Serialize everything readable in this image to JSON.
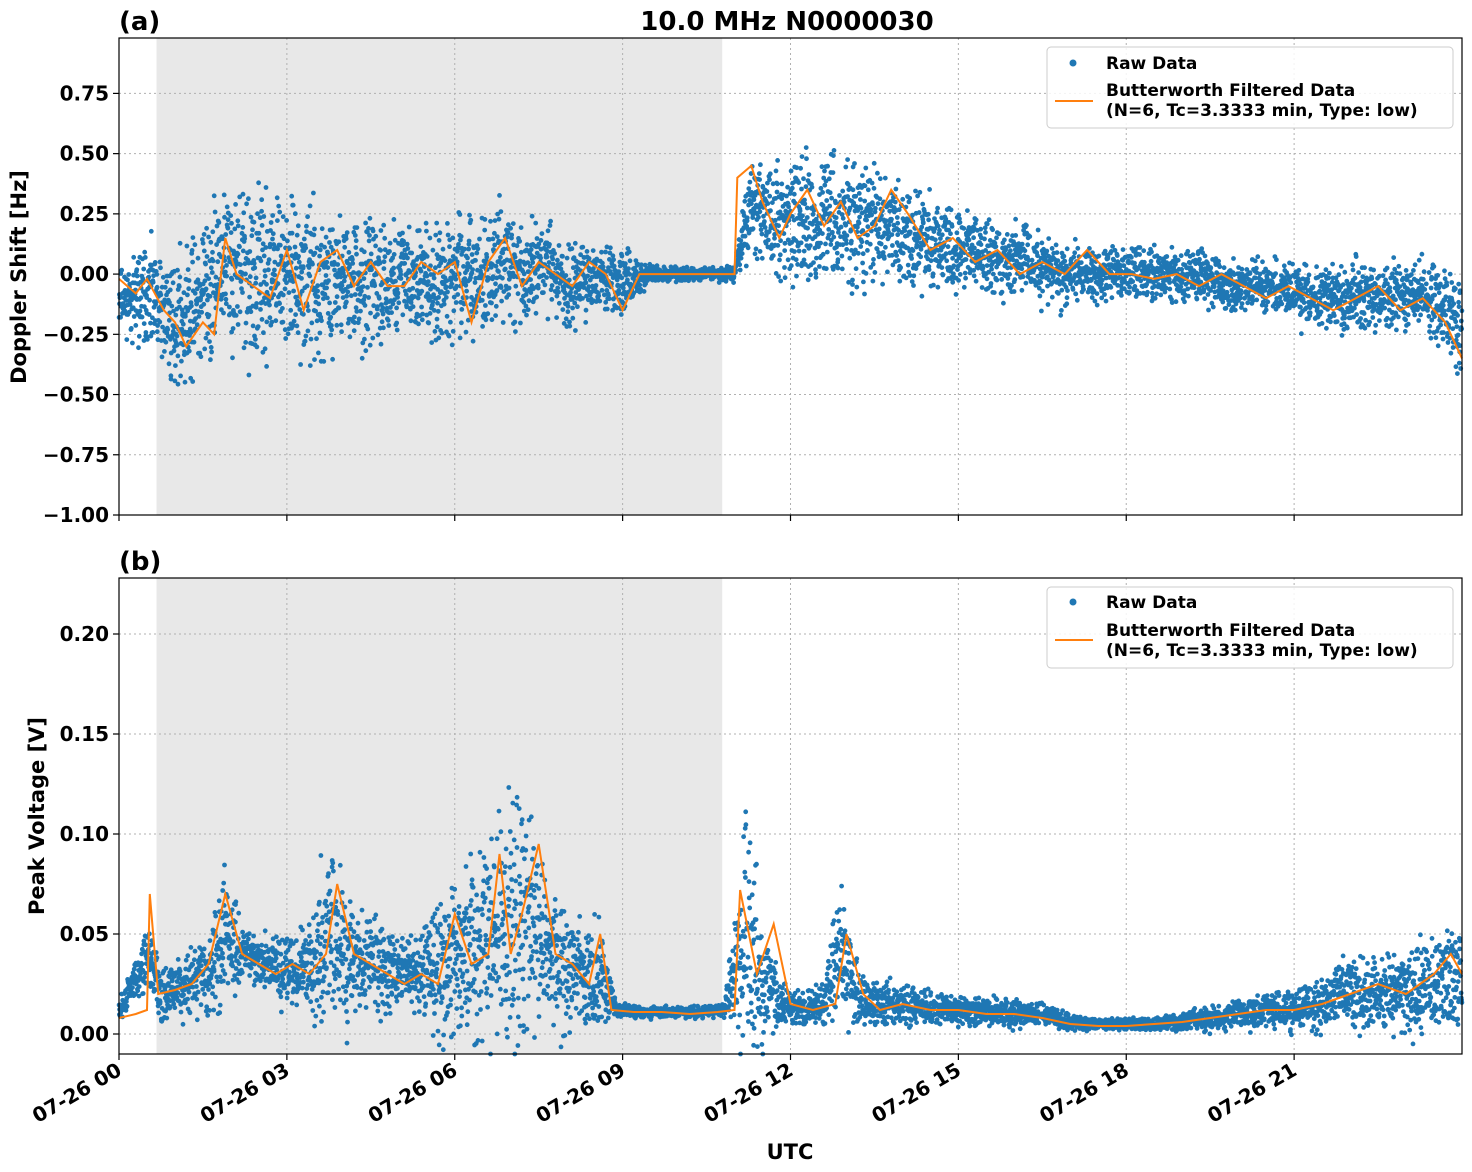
{
  "figure": {
    "title": "10.0 MHz N0000030",
    "xlabel": "UTC"
  },
  "colors": {
    "raw": "#1f77b4",
    "filtered": "#ff7f0e",
    "shade": "#e8e8e8",
    "grid": "#b0b0b0"
  },
  "legend": {
    "raw_label": "Raw Data",
    "filtered_line1": "Butterworth Filtered Data",
    "filtered_line2": "(N=6, Tc=3.3333 min, Type: low)",
    "placement": "top-right"
  },
  "chart_data": [
    {
      "panel_label": "(a)",
      "type": "scatter",
      "ylabel": "Doppler Shift [Hz]",
      "xlim_hours": [
        0,
        24
      ],
      "ylim": [
        -1.0,
        0.98
      ],
      "x_ticks": [
        0,
        3,
        6,
        9,
        12,
        15,
        18,
        21
      ],
      "x_tick_labels": [
        "07-26 00",
        "07-26 03",
        "07-26 06",
        "07-26 09",
        "07-26 12",
        "07-26 15",
        "07-26 18",
        "07-26 21"
      ],
      "y_ticks": [
        -1.0,
        -0.75,
        -0.5,
        -0.25,
        0.0,
        0.25,
        0.5,
        0.75
      ],
      "y_tick_labels": [
        "−1.00",
        "−0.75",
        "−0.50",
        "−0.25",
        "0.00",
        "0.25",
        "0.50",
        "0.75"
      ],
      "shaded_span_hours": [
        0.67,
        10.78
      ],
      "grid": true,
      "series": [
        {
          "name": "Raw Data",
          "kind": "scatter",
          "x_hours": [
            0.0,
            0.5,
            1.0,
            1.5,
            1.9,
            2.5,
            3.0,
            3.5,
            4.0,
            4.5,
            5.0,
            5.5,
            6.0,
            6.4,
            6.8,
            7.2,
            7.6,
            8.0,
            8.5,
            9.0,
            9.5,
            10.0,
            10.5,
            11.0,
            11.3,
            11.8,
            12.3,
            12.7,
            13.2,
            13.7,
            14.2,
            14.8,
            15.3,
            15.8,
            16.3,
            16.8,
            17.3,
            17.8,
            18.3,
            18.8,
            19.3,
            19.8,
            20.3,
            20.8,
            21.3,
            21.8,
            22.3,
            22.8,
            23.3,
            23.7,
            24.0
          ],
          "y_center": [
            -0.1,
            -0.1,
            -0.2,
            -0.1,
            0.05,
            -0.05,
            0.0,
            -0.05,
            0.0,
            -0.05,
            0.0,
            -0.05,
            0.0,
            -0.05,
            0.05,
            0.0,
            0.05,
            -0.05,
            0.0,
            -0.05,
            0.0,
            0.0,
            0.0,
            0.0,
            0.3,
            0.2,
            0.25,
            0.2,
            0.2,
            0.2,
            0.15,
            0.1,
            0.1,
            0.05,
            0.05,
            0.0,
            0.0,
            0.0,
            0.0,
            0.0,
            0.0,
            -0.05,
            -0.05,
            -0.05,
            -0.1,
            -0.1,
            -0.1,
            -0.1,
            -0.1,
            -0.15,
            -0.2
          ],
          "y_spread": [
            0.15,
            0.3,
            0.35,
            0.45,
            0.5,
            0.5,
            0.4,
            0.45,
            0.35,
            0.35,
            0.3,
            0.35,
            0.35,
            0.35,
            0.35,
            0.3,
            0.25,
            0.25,
            0.2,
            0.2,
            0.05,
            0.04,
            0.04,
            0.04,
            0.3,
            0.3,
            0.4,
            0.4,
            0.35,
            0.3,
            0.3,
            0.25,
            0.2,
            0.2,
            0.2,
            0.2,
            0.15,
            0.15,
            0.15,
            0.15,
            0.15,
            0.15,
            0.15,
            0.15,
            0.2,
            0.2,
            0.2,
            0.2,
            0.2,
            0.25,
            0.3
          ]
        },
        {
          "name": "Butterworth Filtered Data (N=6, Tc=3.3333 min, Type: low)",
          "kind": "line",
          "x_hours": [
            0.0,
            0.3,
            0.5,
            0.8,
            1.0,
            1.2,
            1.5,
            1.7,
            1.9,
            2.1,
            2.4,
            2.7,
            3.0,
            3.3,
            3.6,
            3.9,
            4.2,
            4.5,
            4.8,
            5.1,
            5.4,
            5.7,
            6.0,
            6.3,
            6.6,
            6.9,
            7.2,
            7.5,
            7.8,
            8.1,
            8.4,
            8.7,
            9.0,
            9.3,
            9.6,
            10.0,
            10.5,
            11.0,
            11.05,
            11.3,
            11.5,
            11.8,
            12.0,
            12.3,
            12.6,
            12.9,
            13.2,
            13.5,
            13.8,
            14.1,
            14.5,
            14.9,
            15.3,
            15.7,
            16.1,
            16.5,
            16.9,
            17.3,
            17.7,
            18.1,
            18.5,
            18.9,
            19.3,
            19.7,
            20.1,
            20.5,
            20.9,
            21.3,
            21.7,
            22.1,
            22.5,
            22.9,
            23.3,
            23.7,
            24.0
          ],
          "y": [
            -0.02,
            -0.08,
            -0.02,
            -0.15,
            -0.2,
            -0.3,
            -0.2,
            -0.25,
            0.15,
            0.0,
            -0.05,
            -0.1,
            0.1,
            -0.15,
            0.05,
            0.1,
            -0.05,
            0.05,
            -0.05,
            -0.05,
            0.05,
            0.0,
            0.05,
            -0.2,
            0.05,
            0.15,
            -0.05,
            0.05,
            0.0,
            -0.05,
            0.05,
            0.0,
            -0.15,
            0.0,
            0.0,
            0.0,
            0.0,
            0.0,
            0.4,
            0.45,
            0.3,
            0.15,
            0.25,
            0.35,
            0.2,
            0.3,
            0.15,
            0.2,
            0.35,
            0.25,
            0.1,
            0.15,
            0.05,
            0.1,
            0.0,
            0.05,
            0.0,
            0.1,
            0.0,
            0.0,
            -0.02,
            0.0,
            -0.05,
            0.0,
            -0.05,
            -0.1,
            -0.05,
            -0.1,
            -0.15,
            -0.1,
            -0.05,
            -0.15,
            -0.1,
            -0.2,
            -0.35
          ]
        }
      ]
    },
    {
      "panel_label": "(b)",
      "type": "scatter",
      "ylabel": "Peak Voltage [V]",
      "xlim_hours": [
        0,
        24
      ],
      "ylim": [
        -0.01,
        0.228
      ],
      "x_ticks": [
        0,
        3,
        6,
        9,
        12,
        15,
        18,
        21
      ],
      "x_tick_labels": [
        "07-26 00",
        "07-26 03",
        "07-26 06",
        "07-26 09",
        "07-26 12",
        "07-26 15",
        "07-26 18",
        "07-26 21"
      ],
      "y_ticks": [
        0.0,
        0.05,
        0.1,
        0.15,
        0.2
      ],
      "y_tick_labels": [
        "0.00",
        "0.05",
        "0.10",
        "0.15",
        "0.20"
      ],
      "shaded_span_hours": [
        0.67,
        10.78
      ],
      "grid": true,
      "series": [
        {
          "name": "Raw Data",
          "kind": "scatter",
          "x_hours": [
            0.0,
            0.5,
            0.8,
            1.2,
            1.6,
            1.9,
            2.2,
            2.6,
            3.0,
            3.4,
            3.8,
            4.2,
            4.6,
            5.0,
            5.4,
            5.8,
            6.1,
            6.5,
            6.8,
            7.1,
            7.4,
            7.8,
            8.2,
            8.6,
            8.9,
            9.3,
            9.8,
            10.3,
            10.8,
            11.2,
            11.5,
            11.8,
            12.2,
            12.6,
            12.9,
            13.2,
            13.6,
            14.0,
            14.5,
            15.0,
            15.5,
            16.0,
            16.5,
            17.0,
            17.5,
            18.0,
            18.5,
            19.0,
            19.5,
            20.0,
            20.5,
            21.0,
            21.5,
            22.0,
            22.5,
            23.0,
            23.5,
            24.0
          ],
          "y_center": [
            0.01,
            0.04,
            0.02,
            0.025,
            0.03,
            0.05,
            0.04,
            0.035,
            0.03,
            0.035,
            0.05,
            0.035,
            0.035,
            0.03,
            0.03,
            0.035,
            0.04,
            0.045,
            0.05,
            0.06,
            0.05,
            0.04,
            0.03,
            0.03,
            0.012,
            0.011,
            0.011,
            0.011,
            0.012,
            0.05,
            0.03,
            0.015,
            0.012,
            0.015,
            0.045,
            0.02,
            0.015,
            0.015,
            0.013,
            0.012,
            0.011,
            0.01,
            0.01,
            0.006,
            0.005,
            0.005,
            0.005,
            0.006,
            0.008,
            0.01,
            0.012,
            0.012,
            0.015,
            0.02,
            0.02,
            0.02,
            0.025,
            0.03
          ],
          "y_spread": [
            0.008,
            0.02,
            0.02,
            0.02,
            0.03,
            0.05,
            0.02,
            0.02,
            0.025,
            0.03,
            0.07,
            0.035,
            0.04,
            0.025,
            0.03,
            0.05,
            0.06,
            0.07,
            0.09,
            0.11,
            0.07,
            0.05,
            0.04,
            0.035,
            0.004,
            0.004,
            0.004,
            0.004,
            0.004,
            0.09,
            0.05,
            0.015,
            0.012,
            0.015,
            0.05,
            0.02,
            0.015,
            0.015,
            0.012,
            0.01,
            0.01,
            0.01,
            0.008,
            0.005,
            0.004,
            0.004,
            0.004,
            0.006,
            0.008,
            0.01,
            0.012,
            0.015,
            0.02,
            0.025,
            0.025,
            0.03,
            0.035,
            0.045
          ]
        },
        {
          "name": "Butterworth Filtered Data (N=6, Tc=3.3333 min, Type: low)",
          "kind": "line",
          "x_hours": [
            0.0,
            0.3,
            0.5,
            0.55,
            0.7,
            1.0,
            1.3,
            1.6,
            1.9,
            2.2,
            2.5,
            2.8,
            3.1,
            3.4,
            3.7,
            3.9,
            4.2,
            4.5,
            4.8,
            5.1,
            5.4,
            5.7,
            6.0,
            6.3,
            6.6,
            6.8,
            7.0,
            7.2,
            7.5,
            7.8,
            8.1,
            8.4,
            8.6,
            8.8,
            9.2,
            9.7,
            10.2,
            10.7,
            11.0,
            11.1,
            11.4,
            11.7,
            12.0,
            12.4,
            12.8,
            13.0,
            13.3,
            13.6,
            14.0,
            14.5,
            15.0,
            15.5,
            16.0,
            16.5,
            17.0,
            17.5,
            18.0,
            18.5,
            19.0,
            19.5,
            20.0,
            20.5,
            21.0,
            21.5,
            22.0,
            22.5,
            23.0,
            23.5,
            23.8,
            24.0
          ],
          "y": [
            0.008,
            0.01,
            0.012,
            0.07,
            0.02,
            0.022,
            0.025,
            0.035,
            0.07,
            0.04,
            0.035,
            0.03,
            0.035,
            0.03,
            0.04,
            0.075,
            0.04,
            0.035,
            0.03,
            0.025,
            0.03,
            0.025,
            0.06,
            0.035,
            0.04,
            0.09,
            0.04,
            0.06,
            0.095,
            0.04,
            0.035,
            0.025,
            0.05,
            0.012,
            0.011,
            0.011,
            0.01,
            0.011,
            0.012,
            0.072,
            0.03,
            0.055,
            0.015,
            0.012,
            0.015,
            0.05,
            0.02,
            0.012,
            0.015,
            0.012,
            0.012,
            0.01,
            0.01,
            0.008,
            0.005,
            0.004,
            0.004,
            0.005,
            0.006,
            0.008,
            0.01,
            0.012,
            0.012,
            0.015,
            0.02,
            0.025,
            0.02,
            0.03,
            0.04,
            0.03
          ]
        }
      ]
    }
  ]
}
